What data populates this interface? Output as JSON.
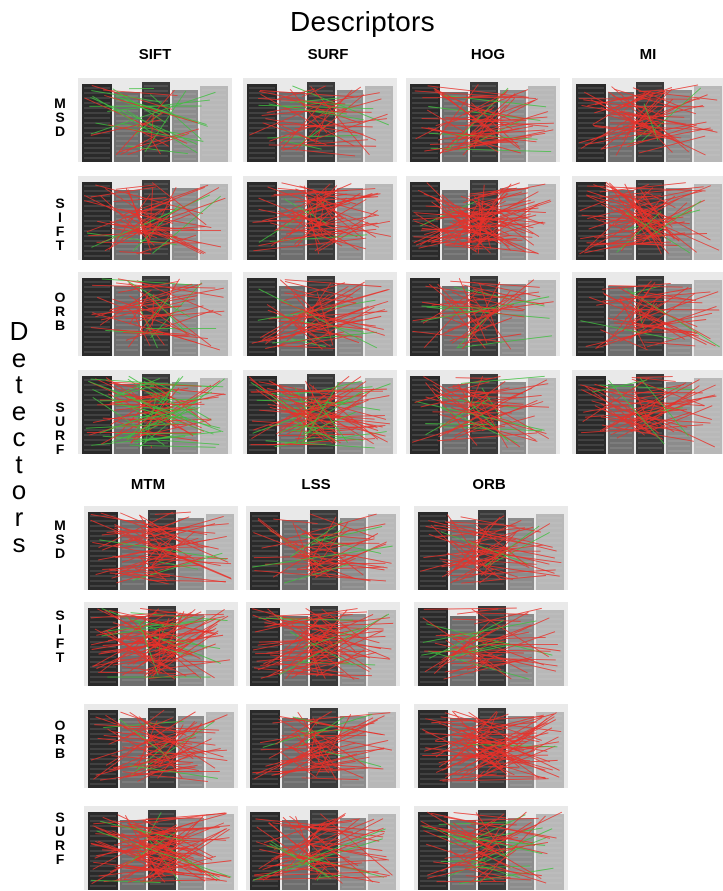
{
  "figure": {
    "top_title": "Descriptors",
    "side_title": "Detectors",
    "top_block": {
      "columns": [
        "SIFT",
        "SURF",
        "HOG",
        "MI"
      ],
      "rows": [
        "MSD",
        "SIFT",
        "ORB",
        "SURF"
      ]
    },
    "bottom_block": {
      "columns": [
        "MTM",
        "LSS",
        "ORB"
      ],
      "rows": [
        "MSD",
        "SIFT",
        "ORB",
        "SURF"
      ]
    }
  },
  "colors": {
    "match_line_red": "#e8312a",
    "match_line_green": "#3fbf3f",
    "building_dark": "#2a2a2a",
    "building_light": "#b8b8b8",
    "sky": "#e9e9e9"
  },
  "panels": {
    "top": [
      [
        {
          "density": 0.35,
          "green": 0.45
        },
        {
          "density": 0.45,
          "green": 0.2
        },
        {
          "density": 0.6,
          "green": 0.15
        },
        {
          "density": 0.6,
          "green": 0.05
        }
      ],
      [
        {
          "density": 0.55,
          "green": 0.1
        },
        {
          "density": 0.65,
          "green": 0.05
        },
        {
          "density": 0.85,
          "green": 0.05
        },
        {
          "density": 0.75,
          "green": 0.05
        }
      ],
      [
        {
          "density": 0.45,
          "green": 0.1
        },
        {
          "density": 0.5,
          "green": 0.1
        },
        {
          "density": 0.45,
          "green": 0.1
        },
        {
          "density": 0.5,
          "green": 0.05
        }
      ],
      [
        {
          "density": 0.9,
          "green": 0.5
        },
        {
          "density": 0.9,
          "green": 0.35
        },
        {
          "density": 0.55,
          "green": 0.15
        },
        {
          "density": 0.6,
          "green": 0.1
        }
      ]
    ],
    "bottom": [
      [
        {
          "density": 0.65,
          "green": 0.1
        },
        {
          "density": 0.45,
          "green": 0.05
        },
        {
          "density": 0.55,
          "green": 0.05
        }
      ],
      [
        {
          "density": 0.9,
          "green": 0.2
        },
        {
          "density": 0.8,
          "green": 0.05
        },
        {
          "density": 0.5,
          "green": 0.15
        }
      ],
      [
        {
          "density": 0.55,
          "green": 0.15
        },
        {
          "density": 0.6,
          "green": 0.05
        },
        {
          "density": 0.8,
          "green": 0.05
        }
      ],
      [
        {
          "density": 1.0,
          "green": 0.05
        },
        {
          "density": 0.65,
          "green": 0.1
        },
        {
          "density": 0.6,
          "green": 0.2
        }
      ]
    ]
  }
}
